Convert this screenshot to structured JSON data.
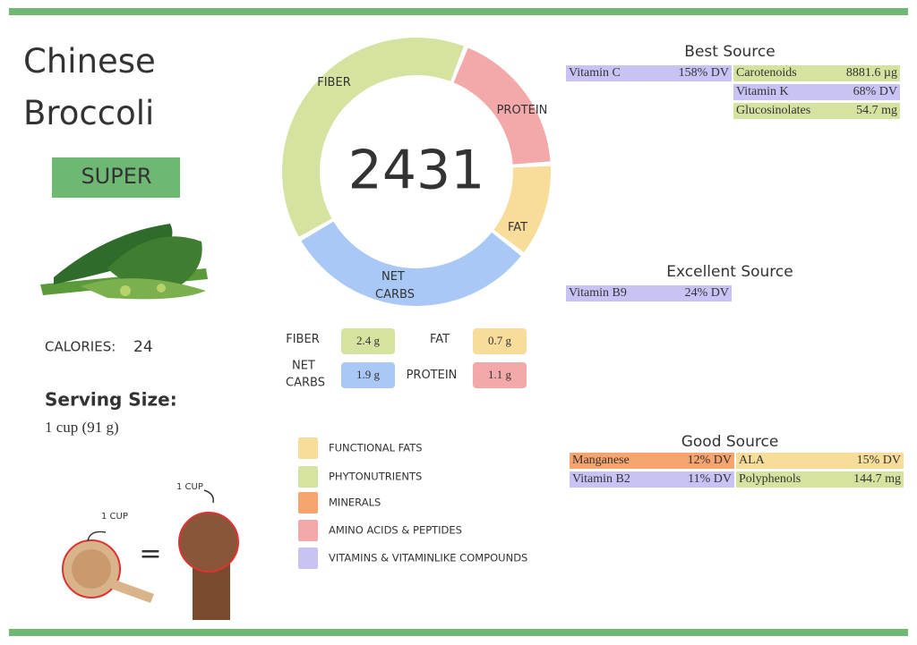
{
  "title": "Chinese Broccoli",
  "rating": "SUPER",
  "score": "2431",
  "calories": {
    "label": "CALORIES:",
    "value": "24"
  },
  "serving": {
    "label": "Serving Size:",
    "value": "1 cup (91 g)"
  },
  "comparison": {
    "cup_label": "1 CUP",
    "fist_label": "1 CUP"
  },
  "macros": [
    {
      "name": "FIBER",
      "value": 2.4,
      "label": "2.4 g",
      "color": "#d4e4a0"
    },
    {
      "name": "PROTEIN",
      "value": 1.1,
      "label": "1.1 g",
      "color": "#f3a9a9"
    },
    {
      "name": "FAT",
      "value": 0.7,
      "label": "0.7 g",
      "color": "#f8dc9a"
    },
    {
      "name": "NET CARBS",
      "value": 1.9,
      "label": "1.9 g",
      "color": "#a9c8f5"
    }
  ],
  "sections": [
    {
      "title": "Best Source",
      "left": [
        {
          "name": "Vitamin C",
          "amount": "158% DV",
          "color": "#c9c3f5"
        }
      ],
      "right": [
        {
          "name": "Carotenoids",
          "amount": "8881.6 µg",
          "color": "#d4e4a0"
        },
        {
          "name": "Vitamin K",
          "amount": "68% DV",
          "color": "#c9c3f5"
        },
        {
          "name": "Glucosinolates",
          "amount": "54.7 mg",
          "color": "#d4e4a0"
        }
      ]
    },
    {
      "title": "Excellent Source",
      "left": [
        {
          "name": "Vitamin B9",
          "amount": "24% DV",
          "color": "#c9c3f5"
        }
      ],
      "right": []
    },
    {
      "title": "Good Source",
      "left": [
        {
          "name": "Manganese",
          "amount": "12% DV",
          "color": "#f7a46e"
        },
        {
          "name": "Vitamin B2",
          "amount": "11% DV",
          "color": "#c9c3f5"
        }
      ],
      "right": [
        {
          "name": "ALA",
          "amount": "15% DV",
          "color": "#f8dc9a"
        },
        {
          "name": "Polyphenols",
          "amount": "144.7 mg",
          "color": "#d4e4a0"
        }
      ]
    }
  ],
  "legend": [
    {
      "label": "FUNCTIONAL FATS",
      "color": "#f8dc9a"
    },
    {
      "label": "PHYTONUTRIENTS",
      "color": "#d4e4a0"
    },
    {
      "label": "MINERALS",
      "color": "#f7a46e"
    },
    {
      "label": "AMINO ACIDS & PEPTIDES",
      "color": "#f3a9a9"
    },
    {
      "label": "VITAMINS & VITAMINLIKE COMPOUNDS",
      "color": "#c9c3f5"
    }
  ]
}
